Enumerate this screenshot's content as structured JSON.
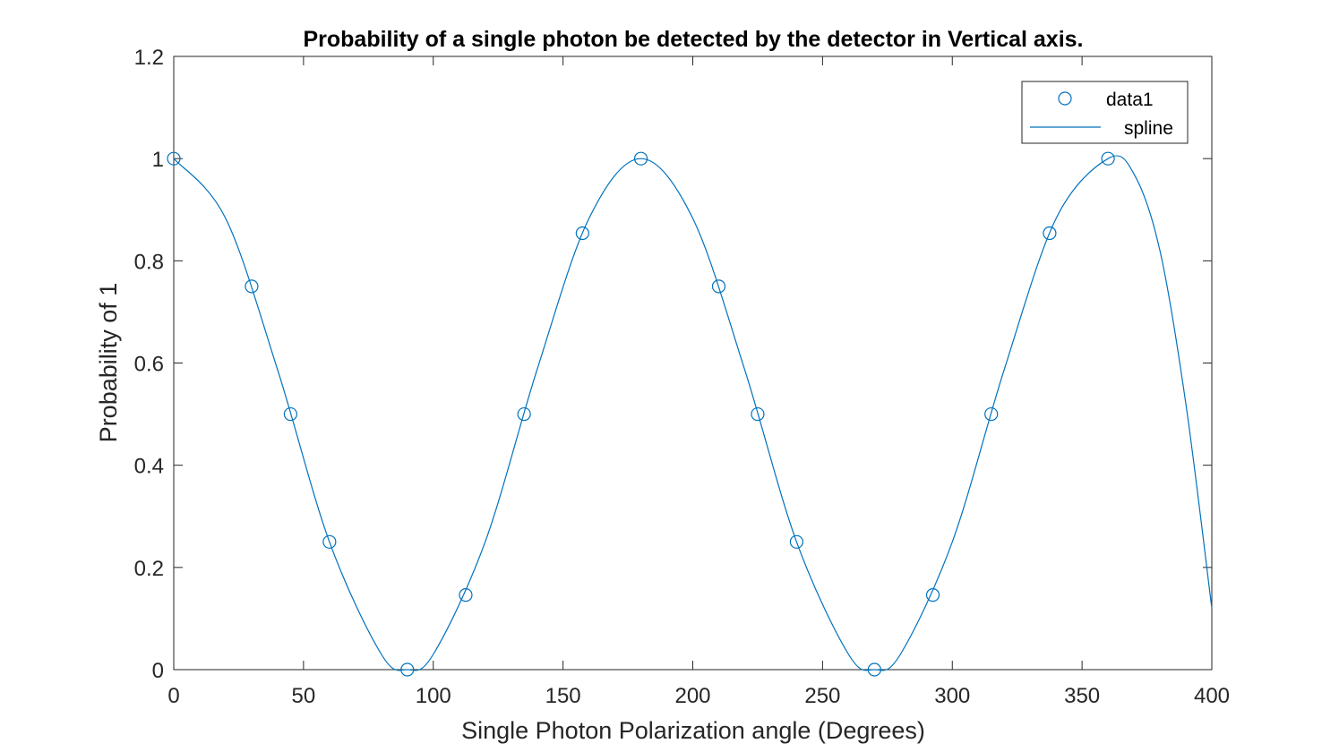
{
  "chart_data": {
    "type": "scatter",
    "title": "Probability of a single photon be detected by the detector in Vertical axis.",
    "xlabel": "Single Photon Polarization angle (Degrees)",
    "ylabel": "Probability of 1",
    "xlim": [
      0,
      400
    ],
    "ylim": [
      0,
      1.2
    ],
    "xticks": [
      0,
      50,
      100,
      150,
      200,
      250,
      300,
      350,
      400
    ],
    "yticks": [
      0,
      0.2,
      0.4,
      0.6,
      0.8,
      1,
      1.2
    ],
    "grid": false,
    "legend_position": "top-right",
    "colors": {
      "series": "#0072BD",
      "axis": "#262626"
    },
    "series": [
      {
        "name": "data1",
        "marker": "circle",
        "x": [
          0,
          30,
          45,
          60,
          90,
          112.5,
          135,
          157.5,
          180,
          210,
          225,
          240,
          270,
          292.5,
          315,
          337.5,
          360
        ],
        "y": [
          1,
          0.75,
          0.5,
          0.25,
          0,
          0.146,
          0.5,
          0.854,
          1,
          0.75,
          0.5,
          0.25,
          0,
          0.146,
          0.5,
          0.854,
          1
        ]
      },
      {
        "name": "spline",
        "marker": "line",
        "x": [
          0,
          20,
          40,
          60,
          80,
          90,
          100,
          120,
          140,
          160,
          180,
          200,
          220,
          240,
          260,
          270,
          280,
          300,
          320,
          340,
          360,
          370,
          380,
          390,
          400
        ],
        "y": [
          1,
          0.883,
          0.587,
          0.25,
          0.03,
          0,
          0.03,
          0.25,
          0.587,
          0.883,
          1,
          0.883,
          0.587,
          0.25,
          0.03,
          0,
          0.03,
          0.25,
          0.587,
          0.883,
          1,
          0.97,
          0.82,
          0.52,
          0.12
        ]
      }
    ]
  }
}
